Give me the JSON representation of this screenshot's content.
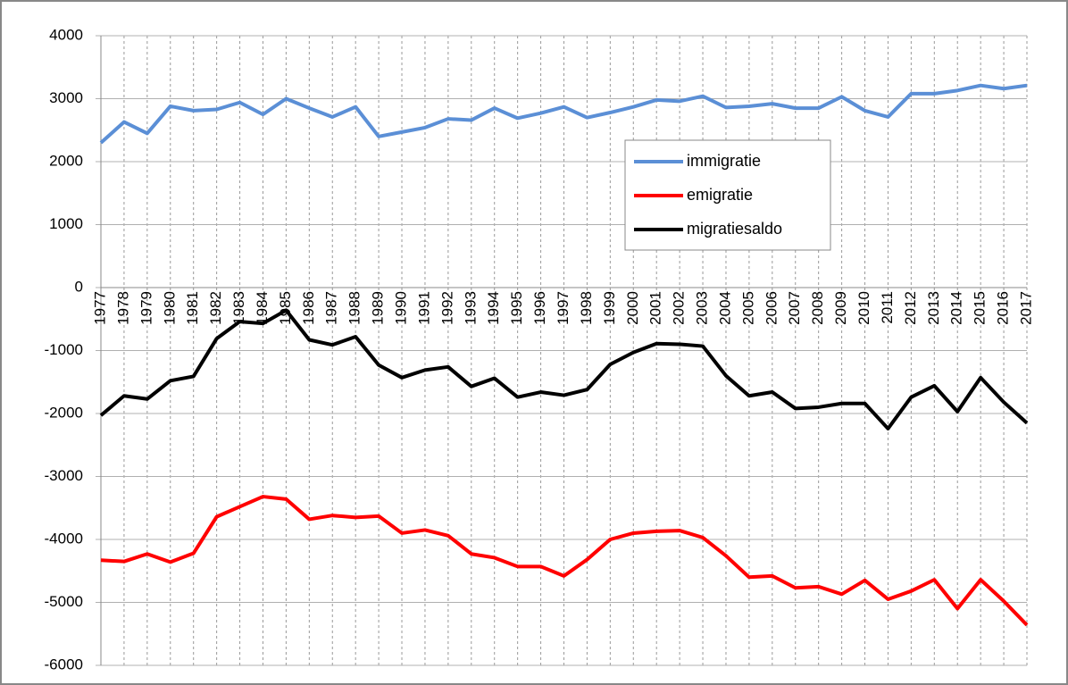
{
  "chart_data": {
    "type": "line",
    "categories": [
      "1977",
      "1978",
      "1979",
      "1980",
      "1981",
      "1982",
      "1983",
      "1984",
      "1985",
      "1986",
      "1987",
      "1988",
      "1989",
      "1990",
      "1991",
      "1992",
      "1993",
      "1994",
      "1995",
      "1996",
      "1997",
      "1998",
      "1999",
      "2000",
      "2001",
      "2002",
      "2003",
      "2004",
      "2005",
      "2006",
      "2007",
      "2008",
      "2009",
      "2010",
      "2011",
      "2012",
      "2013",
      "2014",
      "2015",
      "2016",
      "2017"
    ],
    "series": [
      {
        "name": "immigratie",
        "color": "#5b8fd6",
        "values": [
          2300,
          2630,
          2450,
          2880,
          2810,
          2830,
          2940,
          2750,
          3000,
          2850,
          2710,
          2870,
          2400,
          2470,
          2540,
          2680,
          2660,
          2850,
          2690,
          2770,
          2870,
          2700,
          2780,
          2870,
          2980,
          2960,
          3040,
          2860,
          2880,
          2920,
          2850,
          2850,
          3030,
          2810,
          2710,
          3080,
          3080,
          3130,
          3210,
          3160,
          3210
        ]
      },
      {
        "name": "emigratie",
        "color": "#ff0000",
        "values": [
          -4330,
          -4350,
          -4230,
          -4360,
          -4220,
          -3640,
          -3480,
          -3320,
          -3360,
          -3680,
          -3620,
          -3650,
          -3630,
          -3900,
          -3850,
          -3940,
          -4230,
          -4290,
          -4430,
          -4430,
          -4580,
          -4320,
          -4000,
          -3900,
          -3870,
          -3860,
          -3970,
          -4260,
          -4600,
          -4580,
          -4770,
          -4750,
          -4870,
          -4650,
          -4950,
          -4820,
          -4640,
          -5100,
          -4640,
          -4980,
          -5360
        ]
      },
      {
        "name": "migratiesaldo",
        "color": "#000000",
        "values": [
          -2030,
          -1720,
          -1770,
          -1480,
          -1410,
          -810,
          -540,
          -570,
          -360,
          -830,
          -910,
          -780,
          -1230,
          -1430,
          -1310,
          -1260,
          -1570,
          -1440,
          -1740,
          -1660,
          -1710,
          -1620,
          -1220,
          -1030,
          -890,
          -900,
          -930,
          -1400,
          -1720,
          -1660,
          -1920,
          -1900,
          -1840,
          -1840,
          -2240,
          -1740,
          -1560,
          -1970,
          -1430,
          -1820,
          -2150
        ]
      }
    ],
    "ylim": [
      -6000,
      4000
    ],
    "yticks": [
      -6000,
      -5000,
      -4000,
      -3000,
      -2000,
      -1000,
      0,
      1000,
      2000,
      3000,
      4000
    ],
    "grid": true
  }
}
